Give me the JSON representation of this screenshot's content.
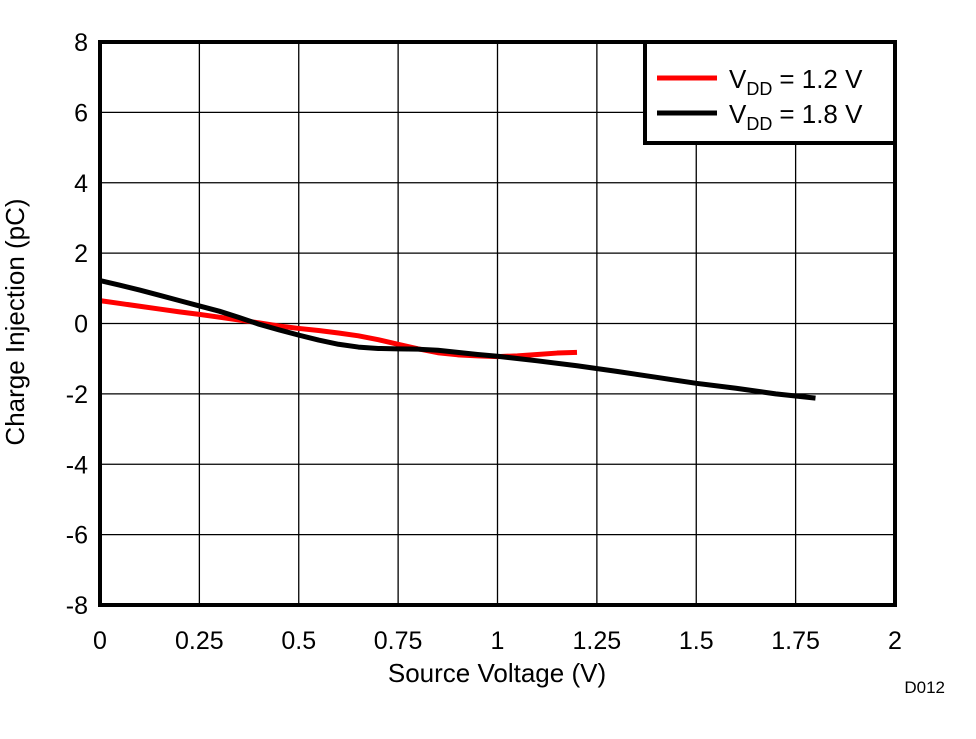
{
  "figure_id": "D012",
  "colors": {
    "background": "#ffffff",
    "grid": "#000000",
    "border": "#000000",
    "series_red": "#ff0000",
    "series_black": "#000000",
    "figure_id_text": "#a0a0a8"
  },
  "chart_data": {
    "type": "line",
    "title": "",
    "xlabel": "Source Voltage (V)",
    "ylabel": "Charge Injection (pC)",
    "xlim": [
      0,
      2
    ],
    "ylim": [
      -8,
      8
    ],
    "grid": true,
    "legend_position": "top-right",
    "x_ticks": [
      0,
      0.25,
      0.5,
      0.75,
      1,
      1.25,
      1.5,
      1.75,
      2
    ],
    "x_tick_labels": [
      "0",
      "0.25",
      "0.5",
      "0.75",
      "1",
      "1.25",
      "1.5",
      "1.75",
      "2"
    ],
    "y_ticks": [
      8,
      6,
      4,
      2,
      0,
      -2,
      -4,
      -6,
      -8
    ],
    "y_tick_labels": [
      "8",
      "6",
      "4",
      "2",
      "0",
      "-2",
      "-4",
      "-6",
      "-8"
    ],
    "series": [
      {
        "name": "VDD = 1.2 V",
        "label_parts": {
          "base": "V",
          "sub": "DD",
          "rest": "= 1.2 V"
        },
        "color": "#ff0000",
        "x": [
          0,
          0.05,
          0.1,
          0.15,
          0.2,
          0.25,
          0.3,
          0.35,
          0.4,
          0.45,
          0.5,
          0.55,
          0.6,
          0.65,
          0.7,
          0.75,
          0.8,
          0.85,
          0.9,
          0.95,
          1.0,
          1.05,
          1.1,
          1.15,
          1.2
        ],
        "y": [
          0.65,
          0.57,
          0.49,
          0.41,
          0.33,
          0.26,
          0.18,
          0.1,
          0.02,
          -0.07,
          -0.14,
          -0.2,
          -0.27,
          -0.35,
          -0.46,
          -0.59,
          -0.72,
          -0.83,
          -0.89,
          -0.92,
          -0.94,
          -0.92,
          -0.88,
          -0.84,
          -0.82
        ]
      },
      {
        "name": "VDD = 1.8 V",
        "label_parts": {
          "base": "V",
          "sub": "DD",
          "rest": "= 1.8 V"
        },
        "color": "#000000",
        "x": [
          0,
          0.05,
          0.1,
          0.15,
          0.2,
          0.25,
          0.3,
          0.35,
          0.4,
          0.45,
          0.5,
          0.55,
          0.6,
          0.65,
          0.7,
          0.75,
          0.8,
          0.85,
          0.9,
          0.95,
          1.0,
          1.1,
          1.2,
          1.3,
          1.4,
          1.5,
          1.6,
          1.7,
          1.8
        ],
        "y": [
          1.22,
          1.09,
          0.95,
          0.8,
          0.65,
          0.5,
          0.35,
          0.17,
          -0.02,
          -0.18,
          -0.33,
          -0.47,
          -0.59,
          -0.67,
          -0.71,
          -0.72,
          -0.73,
          -0.76,
          -0.82,
          -0.88,
          -0.93,
          -1.06,
          -1.2,
          -1.36,
          -1.53,
          -1.7,
          -1.84,
          -2.0,
          -2.12
        ]
      }
    ]
  }
}
